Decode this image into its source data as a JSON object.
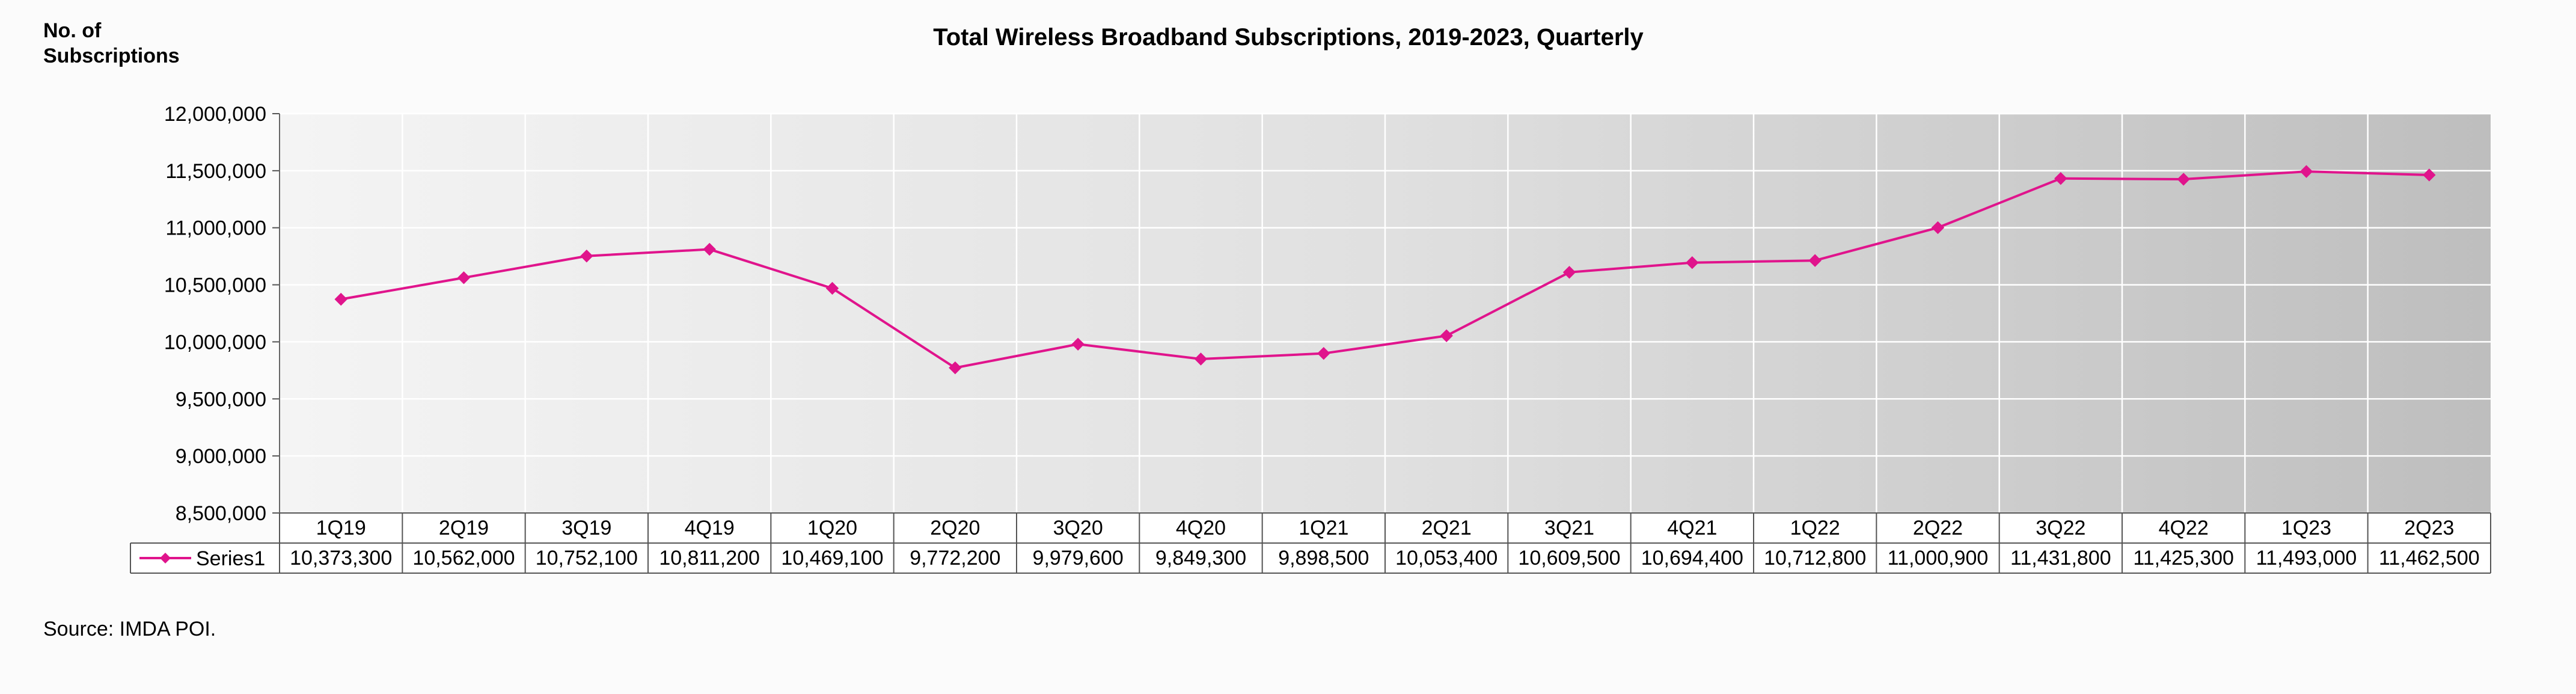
{
  "chart_data": {
    "type": "line",
    "title": "Total Wireless Broadband Subscriptions, 2019-2023, Quarterly",
    "ylabel": "No. of\nSubscriptions",
    "xlabel": "",
    "ylim": [
      8500000,
      12000000
    ],
    "ytick_step": 500000,
    "ytick_labels": [
      "8,500,000",
      "9,000,000",
      "9,500,000",
      "10,000,000",
      "10,500,000",
      "11,000,000",
      "11,500,000",
      "12,000,000"
    ],
    "categories": [
      "1Q19",
      "2Q19",
      "3Q19",
      "4Q19",
      "1Q20",
      "2Q20",
      "3Q20",
      "4Q20",
      "1Q21",
      "2Q21",
      "3Q21",
      "4Q21",
      "1Q22",
      "2Q22",
      "3Q22",
      "4Q22",
      "1Q23",
      "2Q23"
    ],
    "series": [
      {
        "name": "Series1",
        "color": "#e0148c",
        "marker": "diamond",
        "values": [
          10373300,
          10562000,
          10752100,
          10811200,
          10469100,
          9772200,
          9979600,
          9849300,
          9898500,
          10053400,
          10609500,
          10694400,
          10712800,
          11000900,
          11431800,
          11425300,
          11493000,
          11462500
        ],
        "value_labels": [
          "10,373,300",
          "10,562,000",
          "10,752,100",
          "10,811,200",
          "10,469,100",
          "9,772,200",
          "9,979,600",
          "9,849,300",
          "9,898,500",
          "10,053,400",
          "10,609,500",
          "10,694,400",
          "10,712,800",
          "11,000,900",
          "11,431,800",
          "11,425,300",
          "11,493,000",
          "11,462,500"
        ]
      }
    ],
    "grid": true,
    "data_table": true,
    "source": "Source: IMDA POI."
  }
}
